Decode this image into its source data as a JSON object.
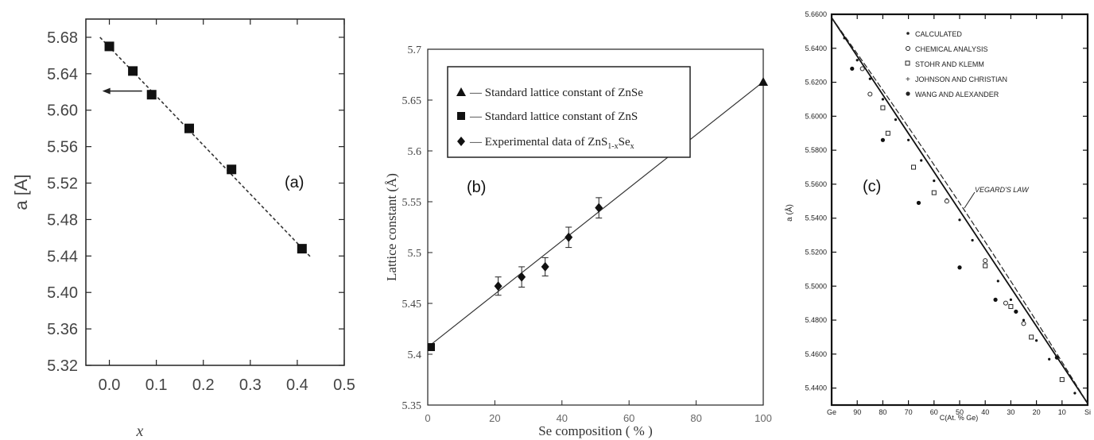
{
  "panels": {
    "a": {
      "tag": "(a)"
    },
    "b": {
      "tag": "(b)"
    },
    "c": {
      "tag": "(c)"
    }
  },
  "chart_data": [
    {
      "id": "a",
      "type": "scatter",
      "xlabel": "x",
      "ylabel": "a [A]",
      "xlim": [
        -0.05,
        0.5
      ],
      "ylim": [
        5.32,
        5.7
      ],
      "xticks": [
        "0.0",
        "0.1",
        "0.2",
        "0.3",
        "0.4",
        "0.5"
      ],
      "yticks": [
        "5.32",
        "5.36",
        "5.40",
        "5.44",
        "5.48",
        "5.52",
        "5.56",
        "5.60",
        "5.64",
        "5.68"
      ],
      "series": [
        {
          "x": [
            0.0,
            0.05,
            0.09,
            0.17,
            0.26,
            0.41
          ],
          "y": [
            5.67,
            5.643,
            5.617,
            5.58,
            5.535,
            5.448
          ]
        }
      ],
      "fit_line": {
        "x": [
          -0.02,
          0.43
        ],
        "y": [
          5.68,
          5.438
        ]
      },
      "annotation": {
        "type": "arrow",
        "at": [
          -0.015,
          5.621
        ],
        "direction": "left"
      }
    },
    {
      "id": "b",
      "type": "scatter",
      "xlabel": "Se composition ( % )",
      "ylabel": "Lattice constant (Å)",
      "xlim": [
        0,
        100
      ],
      "ylim": [
        5.35,
        5.7
      ],
      "xticks": [
        "0",
        "20",
        "40",
        "60",
        "80",
        "100"
      ],
      "yticks": [
        "5.35",
        "5.4",
        "5.45",
        "5.5",
        "5.55",
        "5.6",
        "5.65",
        "5.7"
      ],
      "legend": {
        "position": "top-left",
        "entries": [
          {
            "marker": "triangle",
            "label": "— Standard lattice constant of  ZnSe"
          },
          {
            "marker": "square",
            "label": "— Standard lattice constant of ZnS"
          },
          {
            "marker": "diamond",
            "label": "— Experimental data of ZnS",
            "sub": "1-x",
            "after": "Se",
            "sub2": "x"
          }
        ]
      },
      "series": [
        {
          "marker": "triangle",
          "x": [
            100
          ],
          "y": [
            5.668
          ]
        },
        {
          "marker": "square",
          "x": [
            0
          ],
          "y": [
            5.407
          ]
        },
        {
          "marker": "diamond",
          "x": [
            21,
            28,
            35,
            42,
            51
          ],
          "y": [
            5.467,
            5.476,
            5.486,
            5.515,
            5.544
          ],
          "err": [
            0.009,
            0.01,
            0.009,
            0.01,
            0.01
          ]
        }
      ],
      "fit_line": {
        "x": [
          0,
          100
        ],
        "y": [
          5.407,
          5.668
        ]
      }
    },
    {
      "id": "c",
      "type": "scatter",
      "xlabel": "C(At. % Ge)",
      "ylabel": "a (Å)",
      "xlim": [
        0,
        100
      ],
      "ylim": [
        5.43,
        5.66
      ],
      "x_reversed": true,
      "xticks": [
        "Ge",
        "90",
        "80",
        "70",
        "60",
        "50",
        "40",
        "30",
        "20",
        "10",
        "Si"
      ],
      "yticks": [
        "5.6600",
        "5.6400",
        "5.6200",
        "5.6000",
        "5.5800",
        "5.5600",
        "5.5400",
        "5.5200",
        "5.5000",
        "5.4800",
        "5.4600",
        "5.4400"
      ],
      "legend": {
        "position": "top-center",
        "entries": [
          "CALCULATED",
          "CHEMICAL ANALYSIS",
          "STOHR AND KLEMM",
          "JOHNSON AND CHRISTIAN",
          "WANG AND ALEXANDER"
        ]
      },
      "annotation": {
        "text": "VEGARD'S LAW"
      },
      "lines": [
        {
          "style": "solid",
          "x": [
            100,
            0
          ],
          "y": [
            5.658,
            5.431
          ]
        },
        {
          "style": "dashed",
          "x": [
            100,
            0
          ],
          "y": [
            5.658,
            5.431
          ],
          "bow": 0.005
        }
      ],
      "series": [
        {
          "marker": "dot",
          "x": [
            95,
            90,
            85,
            80,
            75,
            70,
            65,
            60,
            55,
            50,
            45,
            40,
            35,
            30,
            25,
            20,
            15,
            10,
            5
          ],
          "y": [
            5.646,
            5.633,
            5.622,
            5.61,
            5.598,
            5.586,
            5.574,
            5.562,
            5.551,
            5.539,
            5.527,
            5.515,
            5.503,
            5.492,
            5.48,
            5.468,
            5.457,
            5.445,
            5.437
          ]
        },
        {
          "marker": "open-square",
          "x": [
            80,
            78,
            68,
            60,
            40,
            30,
            22,
            10
          ],
          "y": [
            5.605,
            5.59,
            5.57,
            5.555,
            5.512,
            5.488,
            5.47,
            5.445
          ]
        },
        {
          "marker": "open-circle",
          "x": [
            88,
            85,
            55,
            40,
            32,
            25
          ],
          "y": [
            5.628,
            5.613,
            5.55,
            5.515,
            5.49,
            5.478
          ]
        },
        {
          "marker": "filled-dot",
          "x": [
            92,
            80,
            66,
            50,
            36,
            28,
            12
          ],
          "y": [
            5.628,
            5.586,
            5.549,
            5.511,
            5.492,
            5.485,
            5.458
          ]
        }
      ]
    }
  ]
}
